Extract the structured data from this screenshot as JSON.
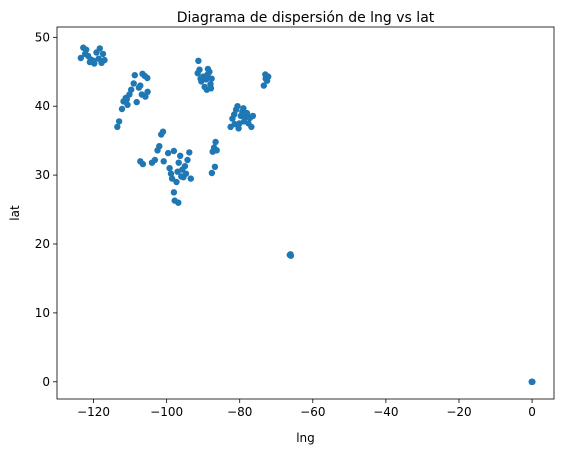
{
  "chart_data": {
    "type": "scatter",
    "title": "Diagrama de dispersión de lng vs lat",
    "xlabel": "lng",
    "ylabel": "lat",
    "xlim": [
      -130,
      6
    ],
    "ylim": [
      -2.5,
      51.5
    ],
    "xticks": [
      -120,
      -100,
      -80,
      -60,
      -40,
      -20,
      0
    ],
    "xtick_labels": [
      "−120",
      "−100",
      "−80",
      "−60",
      "−40",
      "−20",
      "0"
    ],
    "yticks": [
      0,
      10,
      20,
      30,
      40,
      50
    ],
    "ytick_labels": [
      "0",
      "10",
      "20",
      "30",
      "40",
      "50"
    ],
    "grid": false,
    "legend": "none",
    "marker_color": "#1f77b4",
    "series": [
      {
        "points": [
          [
            -123.5,
            47.0
          ],
          [
            -122.8,
            48.5
          ],
          [
            -122.3,
            47.6
          ],
          [
            -121.5,
            47.3
          ],
          [
            -120.8,
            46.8
          ],
          [
            -120.0,
            46.6
          ],
          [
            -119.2,
            47.8
          ],
          [
            -118.6,
            46.9
          ],
          [
            -117.8,
            46.3
          ],
          [
            -117.4,
            47.6
          ],
          [
            -122.0,
            48.2
          ],
          [
            -121.0,
            46.4
          ],
          [
            -118.3,
            48.4
          ],
          [
            -117.0,
            46.7
          ],
          [
            -119.8,
            46.2
          ],
          [
            -113.5,
            37.0
          ],
          [
            -113.0,
            37.8
          ],
          [
            -112.2,
            39.6
          ],
          [
            -111.8,
            40.7
          ],
          [
            -111.2,
            41.2
          ],
          [
            -110.7,
            40.2
          ],
          [
            -110.2,
            41.7
          ],
          [
            -109.7,
            42.4
          ],
          [
            -109.0,
            43.3
          ],
          [
            -108.7,
            44.5
          ],
          [
            -107.6,
            42.7
          ],
          [
            -107.2,
            43.0
          ],
          [
            -106.6,
            44.7
          ],
          [
            -106.0,
            44.4
          ],
          [
            -105.3,
            44.1
          ],
          [
            -106.8,
            41.7
          ],
          [
            -105.8,
            41.4
          ],
          [
            -105.2,
            42.1
          ],
          [
            -110.9,
            41.0
          ],
          [
            -108.2,
            40.6
          ],
          [
            -107.2,
            32.0
          ],
          [
            -106.5,
            31.6
          ],
          [
            -104.0,
            31.8
          ],
          [
            -103.2,
            32.2
          ],
          [
            -102.5,
            33.6
          ],
          [
            -102.0,
            34.2
          ],
          [
            -101.5,
            35.9
          ],
          [
            -101.0,
            36.3
          ],
          [
            -100.8,
            32.0
          ],
          [
            -99.6,
            33.2
          ],
          [
            -99.2,
            31.0
          ],
          [
            -98.8,
            30.2
          ],
          [
            -98.5,
            29.5
          ],
          [
            -98.0,
            27.5
          ],
          [
            -97.8,
            26.3
          ],
          [
            -97.3,
            29.0
          ],
          [
            -97.0,
            30.5
          ],
          [
            -96.7,
            31.8
          ],
          [
            -96.3,
            32.8
          ],
          [
            -96.0,
            29.8
          ],
          [
            -95.7,
            30.8
          ],
          [
            -95.4,
            29.7
          ],
          [
            -95.0,
            31.3
          ],
          [
            -94.7,
            30.2
          ],
          [
            -94.3,
            32.2
          ],
          [
            -93.8,
            33.3
          ],
          [
            -93.4,
            29.5
          ],
          [
            -98.0,
            33.5
          ],
          [
            -96.8,
            26.0
          ],
          [
            -91.5,
            44.8
          ],
          [
            -91.0,
            45.3
          ],
          [
            -90.5,
            43.6
          ],
          [
            -90.0,
            44.3
          ],
          [
            -89.6,
            42.8
          ],
          [
            -89.2,
            43.9
          ],
          [
            -88.8,
            44.6
          ],
          [
            -88.3,
            45.0
          ],
          [
            -88.0,
            43.2
          ],
          [
            -87.7,
            44.0
          ],
          [
            -91.3,
            46.6
          ],
          [
            -89.0,
            42.4
          ],
          [
            -88.7,
            45.4
          ],
          [
            -90.7,
            44.0
          ],
          [
            -87.9,
            42.6
          ],
          [
            -87.6,
            30.3
          ],
          [
            -86.8,
            31.2
          ],
          [
            -87.4,
            33.4
          ],
          [
            -87.0,
            34.0
          ],
          [
            -86.6,
            34.8
          ],
          [
            -86.3,
            33.6
          ],
          [
            -82.5,
            37.0
          ],
          [
            -82.0,
            38.2
          ],
          [
            -81.5,
            38.8
          ],
          [
            -81.0,
            39.5
          ],
          [
            -80.6,
            40.0
          ],
          [
            -80.1,
            37.5
          ],
          [
            -79.7,
            38.6
          ],
          [
            -79.3,
            39.2
          ],
          [
            -78.8,
            37.8
          ],
          [
            -78.4,
            38.4
          ],
          [
            -78.0,
            39.0
          ],
          [
            -77.6,
            37.5
          ],
          [
            -77.2,
            38.3
          ],
          [
            -76.8,
            37.0
          ],
          [
            -76.4,
            38.6
          ],
          [
            -80.3,
            36.8
          ],
          [
            -79.0,
            39.7
          ],
          [
            -81.4,
            37.4
          ],
          [
            -73.4,
            43.0
          ],
          [
            -73.0,
            44.6
          ],
          [
            -72.5,
            43.7
          ],
          [
            -72.2,
            44.3
          ],
          [
            -72.9,
            44.0
          ],
          [
            -66.3,
            18.4
          ],
          [
            -66.0,
            18.3
          ],
          [
            -66.1,
            18.5
          ],
          [
            0.0,
            0.0
          ],
          [
            0.1,
            0.0
          ],
          [
            -0.1,
            0.0
          ]
        ]
      }
    ]
  }
}
